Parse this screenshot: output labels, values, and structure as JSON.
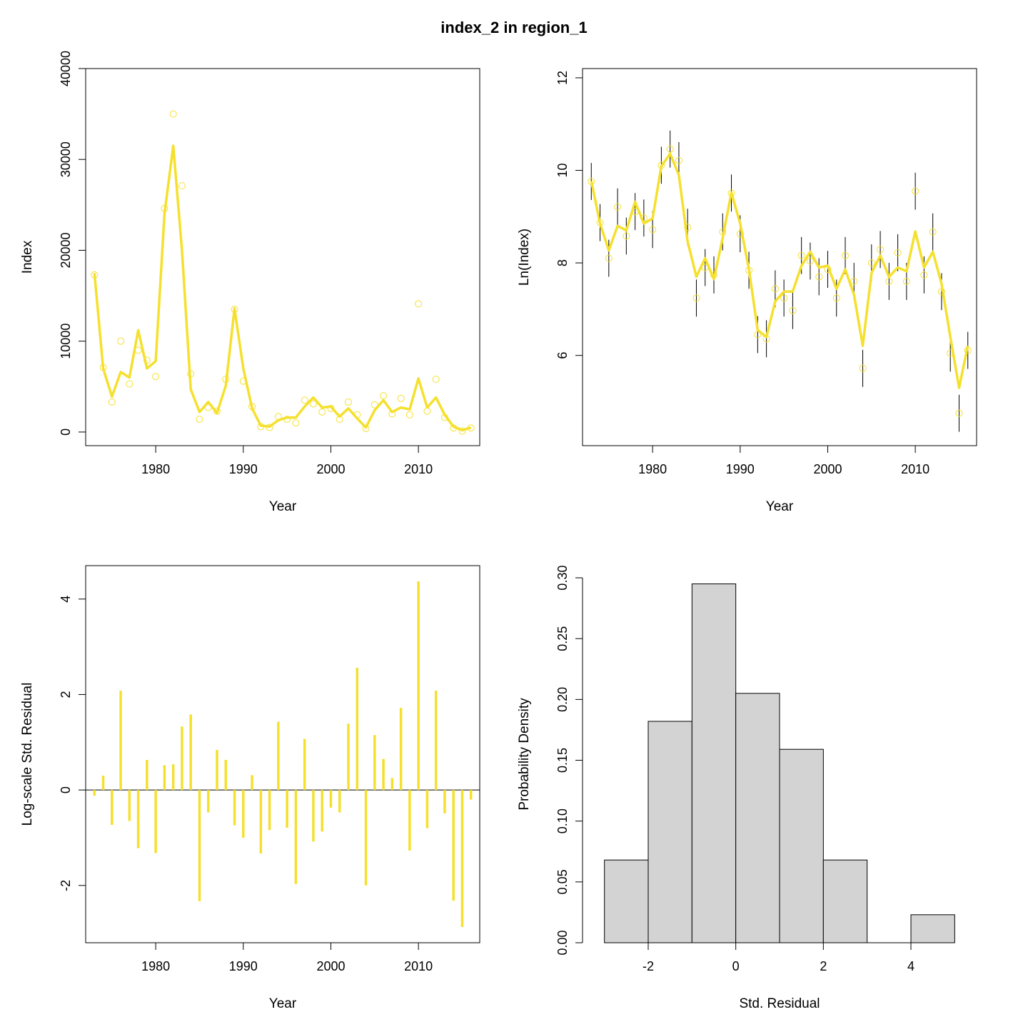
{
  "title": "index_2 in region_1",
  "colors": {
    "series": "#F5E02D",
    "axis": "#000000",
    "hist_fill": "#D3D3D3"
  },
  "chart_data": [
    {
      "id": "index_panel",
      "type": "line",
      "xlabel": "Year",
      "ylabel": "Index",
      "xlim": [
        1972,
        2017
      ],
      "ylim": [
        -1500,
        40000
      ],
      "xticks": [
        1980,
        1990,
        2000,
        2010
      ],
      "yticks": [
        0,
        10000,
        20000,
        30000,
        40000
      ],
      "ytick_labels": [
        "0",
        "10000",
        "20000",
        "30000",
        "40000"
      ],
      "x": [
        1973,
        1974,
        1975,
        1976,
        1977,
        1978,
        1979,
        1980,
        1981,
        1982,
        1983,
        1984,
        1985,
        1986,
        1987,
        1988,
        1989,
        1990,
        1991,
        1992,
        1993,
        1994,
        1995,
        1996,
        1997,
        1998,
        1999,
        2000,
        2001,
        2002,
        2003,
        2004,
        2005,
        2006,
        2007,
        2008,
        2009,
        2010,
        2011,
        2012,
        2013,
        2014,
        2015,
        2016
      ],
      "fitted": [
        17500,
        7000,
        3900,
        6600,
        6000,
        11200,
        7000,
        7800,
        24000,
        31500,
        20000,
        4700,
        2200,
        3300,
        2100,
        5100,
        13600,
        7000,
        2600,
        700,
        600,
        1300,
        1600,
        1600,
        2800,
        3800,
        2700,
        2800,
        1700,
        2600,
        1500,
        500,
        2400,
        3500,
        2200,
        2700,
        2500,
        5900,
        2700,
        3800,
        1900,
        600,
        200,
        500
      ],
      "observed": [
        17300,
        7100,
        3300,
        10000,
        5300,
        9000,
        7900,
        6100,
        24600,
        35000,
        27100,
        6400,
        1400,
        2700,
        2300,
        5800,
        13500,
        5600,
        2800,
        600,
        500,
        1700,
        1400,
        1000,
        3500,
        3100,
        2200,
        2600,
        1400,
        3300,
        1900,
        400,
        3000,
        4000,
        2000,
        3700,
        1900,
        14100,
        2300,
        5800,
        1600,
        450,
        100,
        450
      ]
    },
    {
      "id": "log_panel",
      "type": "line",
      "xlabel": "Year",
      "ylabel": "Ln(Index)",
      "xlim": [
        1972,
        2017
      ],
      "ylim": [
        4.05,
        12.2
      ],
      "xticks": [
        1980,
        1990,
        2000,
        2010
      ],
      "yticks": [
        6,
        8,
        10,
        12
      ],
      "ytick_labels": [
        "6",
        "8",
        "10",
        "12"
      ],
      "x": [
        1973,
        1974,
        1975,
        1976,
        1977,
        1978,
        1979,
        1980,
        1981,
        1982,
        1983,
        1984,
        1985,
        1986,
        1987,
        1988,
        1989,
        1990,
        1991,
        1992,
        1993,
        1994,
        1995,
        1996,
        1997,
        1998,
        1999,
        2000,
        2001,
        2002,
        2003,
        2004,
        2005,
        2006,
        2007,
        2008,
        2009,
        2010,
        2011,
        2012,
        2013,
        2014,
        2015,
        2016
      ],
      "fitted": [
        9.77,
        8.85,
        8.27,
        8.8,
        8.7,
        9.32,
        8.85,
        8.96,
        10.09,
        10.36,
        9.9,
        8.46,
        7.7,
        8.1,
        7.65,
        8.54,
        9.52,
        8.85,
        7.86,
        6.55,
        6.4,
        7.17,
        7.38,
        7.38,
        7.94,
        8.24,
        7.9,
        7.94,
        7.44,
        7.86,
        7.31,
        6.21,
        7.78,
        8.16,
        7.7,
        7.9,
        7.82,
        8.68,
        7.9,
        8.24,
        7.55,
        6.4,
        5.3,
        6.21
      ],
      "observed": [
        9.76,
        8.87,
        8.1,
        9.21,
        8.58,
        9.11,
        8.97,
        8.72,
        10.11,
        10.46,
        10.21,
        8.77,
        7.24,
        7.9,
        7.74,
        8.67,
        9.51,
        8.63,
        7.84,
        6.45,
        6.36,
        7.44,
        7.24,
        6.97,
        8.16,
        8.04,
        7.7,
        7.86,
        7.24,
        8.16,
        7.6,
        5.72,
        8.0,
        8.29,
        7.6,
        8.22,
        7.6,
        9.55,
        7.74,
        8.67,
        7.38,
        6.05,
        4.75,
        6.11
      ],
      "ci_lower": [
        9.36,
        8.47,
        7.7,
        8.81,
        8.18,
        8.71,
        8.57,
        8.32,
        9.71,
        10.06,
        9.81,
        8.37,
        6.84,
        7.5,
        7.34,
        8.27,
        9.11,
        8.23,
        7.44,
        6.05,
        5.96,
        7.04,
        6.84,
        6.57,
        7.76,
        7.64,
        7.3,
        7.46,
        6.84,
        7.76,
        7.2,
        5.32,
        7.6,
        7.89,
        7.2,
        7.82,
        7.2,
        9.15,
        7.34,
        8.27,
        6.98,
        5.65,
        4.35,
        5.71
      ],
      "ci_upper": [
        10.16,
        9.27,
        8.5,
        9.61,
        8.98,
        9.51,
        9.37,
        9.12,
        10.51,
        10.86,
        10.61,
        9.17,
        7.64,
        8.3,
        8.14,
        9.07,
        9.91,
        9.03,
        8.24,
        6.85,
        6.76,
        7.84,
        7.64,
        7.37,
        8.56,
        8.44,
        8.1,
        8.26,
        7.64,
        8.56,
        8.0,
        6.12,
        8.4,
        8.69,
        8.0,
        8.62,
        8.0,
        9.95,
        8.14,
        9.07,
        7.78,
        6.45,
        5.15,
        6.51
      ]
    },
    {
      "id": "residual_panel",
      "type": "bar",
      "xlabel": "Year",
      "ylabel": "Log-scale Std. Residual",
      "xlim": [
        1972,
        2017
      ],
      "ylim": [
        -3.2,
        4.7
      ],
      "xticks": [
        1980,
        1990,
        2000,
        2010
      ],
      "yticks": [
        -2,
        0,
        2,
        4
      ],
      "ytick_labels": [
        "-2",
        "0",
        "2",
        "4"
      ],
      "x": [
        1973,
        1974,
        1975,
        1976,
        1977,
        1978,
        1979,
        1980,
        1981,
        1982,
        1983,
        1984,
        1985,
        1986,
        1987,
        1988,
        1989,
        1990,
        1991,
        1992,
        1993,
        1994,
        1995,
        1996,
        1997,
        1998,
        1999,
        2000,
        2001,
        2002,
        2003,
        2004,
        2005,
        2006,
        2007,
        2008,
        2009,
        2010,
        2011,
        2012,
        2013,
        2014,
        2015,
        2016
      ],
      "values": [
        -0.12,
        0.3,
        -0.73,
        2.08,
        -0.65,
        -1.22,
        0.63,
        -1.32,
        0.52,
        0.54,
        1.33,
        1.58,
        -2.33,
        -0.47,
        0.84,
        0.63,
        -0.74,
        -1.0,
        0.31,
        -1.33,
        -0.84,
        1.43,
        -0.79,
        -1.97,
        1.07,
        -1.08,
        -0.87,
        -0.37,
        -0.47,
        1.39,
        2.56,
        -2.0,
        1.15,
        0.65,
        0.25,
        1.72,
        -1.27,
        4.37,
        -0.8,
        2.08,
        -0.49,
        -2.32,
        -2.87,
        -0.2
      ]
    },
    {
      "id": "histogram_panel",
      "type": "bar",
      "xlabel": "Std. Residual",
      "ylabel": "Probability Density",
      "xlim": [
        -3.5,
        5.5
      ],
      "ylim": [
        0,
        0.31
      ],
      "xticks": [
        -2,
        0,
        2,
        4
      ],
      "xtick_labels": [
        "-2",
        "0",
        "2",
        "4"
      ],
      "yticks": [
        0,
        0.05,
        0.1,
        0.15,
        0.2,
        0.25,
        0.3
      ],
      "ytick_labels": [
        "0.00",
        "0.05",
        "0.10",
        "0.15",
        "0.20",
        "0.25",
        "0.30"
      ],
      "bin_edges": [
        -3,
        -2,
        -1,
        0,
        1,
        2,
        3,
        4,
        5
      ],
      "density": [
        0.068,
        0.182,
        0.295,
        0.205,
        0.159,
        0.068,
        0,
        0.023
      ]
    }
  ]
}
